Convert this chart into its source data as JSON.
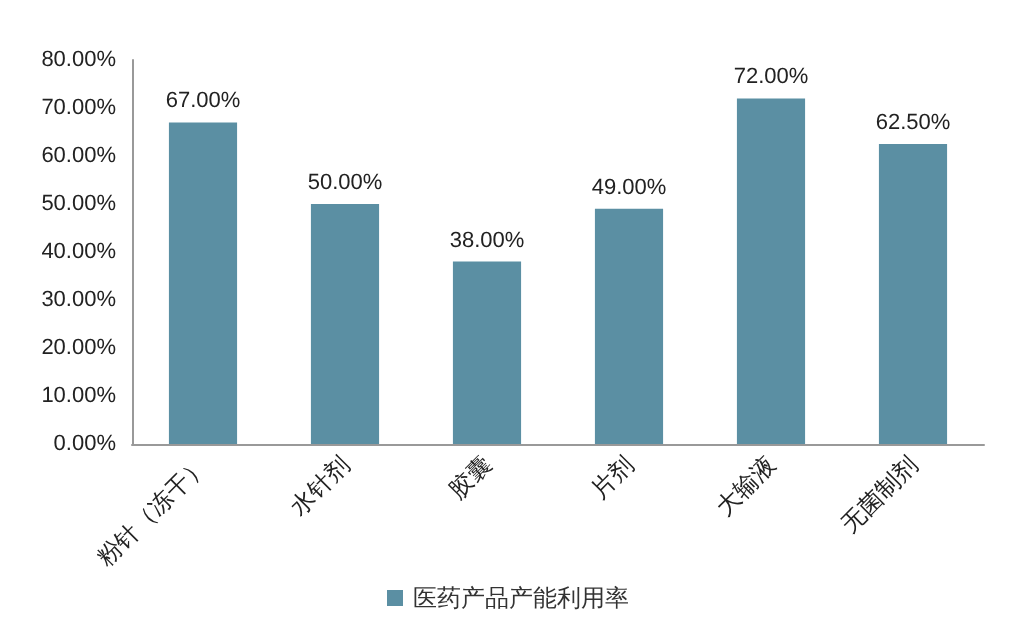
{
  "chart_data": {
    "type": "bar",
    "categories": [
      "粉针（冻干）",
      "水针剂",
      "胶囊",
      "片剂",
      "大输液",
      "无菌制剂"
    ],
    "series": [
      {
        "name": "医药产品产能利用率",
        "color": "#5b8fa3",
        "values": [
          67,
          50,
          38,
          49,
          72,
          62.5
        ],
        "value_labels": [
          "67.00%",
          "50.00%",
          "38.00%",
          "49.00%",
          "72.00%",
          "62.50%"
        ]
      }
    ],
    "ylim": [
      0,
      80
    ],
    "yticks": [
      {
        "value": 0,
        "label": "0.00%"
      },
      {
        "value": 10,
        "label": "10.00%"
      },
      {
        "value": 20,
        "label": "20.00%"
      },
      {
        "value": 30,
        "label": "30.00%"
      },
      {
        "value": 40,
        "label": "40.00%"
      },
      {
        "value": 50,
        "label": "50.00%"
      },
      {
        "value": 60,
        "label": "60.00%"
      },
      {
        "value": 70,
        "label": "70.00%"
      },
      {
        "value": 80,
        "label": "80.00%"
      }
    ],
    "grid": false,
    "legend": "bottom"
  }
}
